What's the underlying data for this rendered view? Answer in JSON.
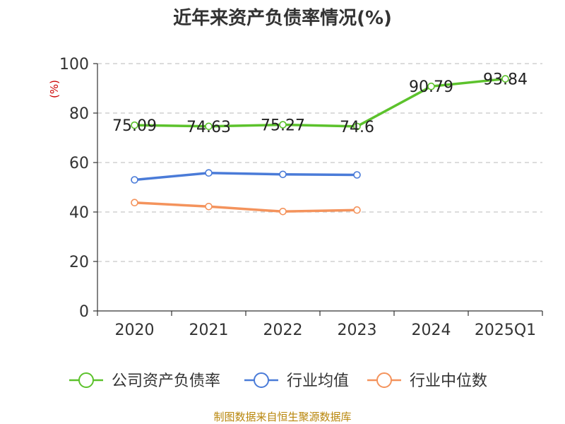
{
  "chart_data": {
    "type": "line",
    "title": "近年来资产负债率情况(%)",
    "ylabel": "(%)",
    "categories": [
      "2020",
      "2021",
      "2022",
      "2023",
      "2024",
      "2025Q1"
    ],
    "ylim": [
      0,
      100
    ],
    "yticks": [
      "0",
      "20",
      "40",
      "60",
      "80",
      "100"
    ],
    "grid": true,
    "legend_position": "bottom",
    "series": [
      {
        "name": "公司资产负债率",
        "color": "#5cc22c",
        "values": [
          75.09,
          74.63,
          75.27,
          74.6,
          90.79,
          93.84
        ],
        "labels": [
          "75.09",
          "74.63",
          "75.27",
          "74.6",
          "90.79",
          "93.84"
        ]
      },
      {
        "name": "行业均值",
        "color": "#4a7bd8",
        "values": [
          53.0,
          55.8,
          55.2,
          55.0,
          null,
          null
        ]
      },
      {
        "name": "行业中位数",
        "color": "#f4935c",
        "values": [
          43.8,
          42.2,
          40.2,
          40.8,
          null,
          null
        ]
      }
    ]
  },
  "source": "制图数据来自恒生聚源数据库"
}
